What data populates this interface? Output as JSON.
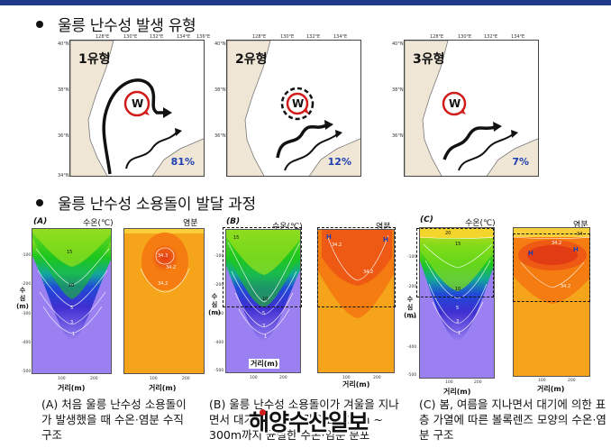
{
  "title_1": "울릉 난수성   발생 유형",
  "title_2": "울릉 난수성 소용돌이 발달 과정",
  "maps": [
    {
      "label": "1유형",
      "percent": "81%"
    },
    {
      "label": "2유형",
      "percent": "12%"
    },
    {
      "label": "3유형",
      "percent": "7%"
    }
  ],
  "eddy_symbol": "W",
  "map_axes": {
    "lon_ticks": [
      "128°E",
      "130°E",
      "132°E",
      "134°E",
      "136°E"
    ],
    "lat_ticks": [
      "40°N",
      "38°N",
      "36°N",
      "34°N"
    ]
  },
  "sections": [
    {
      "letter": "(A)",
      "temp_head": "수온(℃)",
      "sal_head": "염분",
      "caption": "(A) 처음 울릉 난수성 소용돌이가 발생했을 때 수온·염분 수직 구조",
      "temp_contours": [
        "15",
        "10",
        "5",
        "3",
        "1"
      ],
      "sal_contours": [
        "34.3",
        "34.2",
        "34.2"
      ]
    },
    {
      "letter": "(B)",
      "temp_head": "수온(℃)",
      "sal_head": "염분",
      "caption": "(B) 울릉 난수성 소용돌이가 겨울을 지나면서 대기에 의한 냉각으로 100m ~ 300m까지 균질한 수온·염분 분포",
      "temp_contours": [
        "15",
        "10",
        "5",
        "3",
        "1"
      ],
      "sal_contours": [
        "34.2",
        "34.2"
      ],
      "sal_marks": [
        "H",
        "H"
      ]
    },
    {
      "letter": "(C)",
      "temp_head": "수온(℃)",
      "sal_head": "염분",
      "caption": "(C) 봄, 여름을 지나면서 대기에 의한 표층 가열에 따른 볼록렌즈 모양의 수온·염분 구조",
      "temp_contours": [
        "20",
        "15",
        "10",
        "5",
        "3",
        "1"
      ],
      "sal_contours": [
        "34",
        "34.2",
        "34.2"
      ],
      "sal_marks": [
        "H",
        "H"
      ]
    }
  ],
  "axis": {
    "depth_label": "수\n심\n(m)",
    "distance_label": "거리(m)",
    "depth_ticks": [
      "-100",
      "-200",
      "-300",
      "-400",
      "-500"
    ],
    "dist_ticks": [
      "100",
      "200"
    ]
  },
  "watermark": "해양수산일보",
  "colors": {
    "header_bar": "#1f3b8c",
    "eddy_red": "#d21b1b",
    "percent_blue": "#1d3fb0",
    "land": "#efe6d6"
  }
}
